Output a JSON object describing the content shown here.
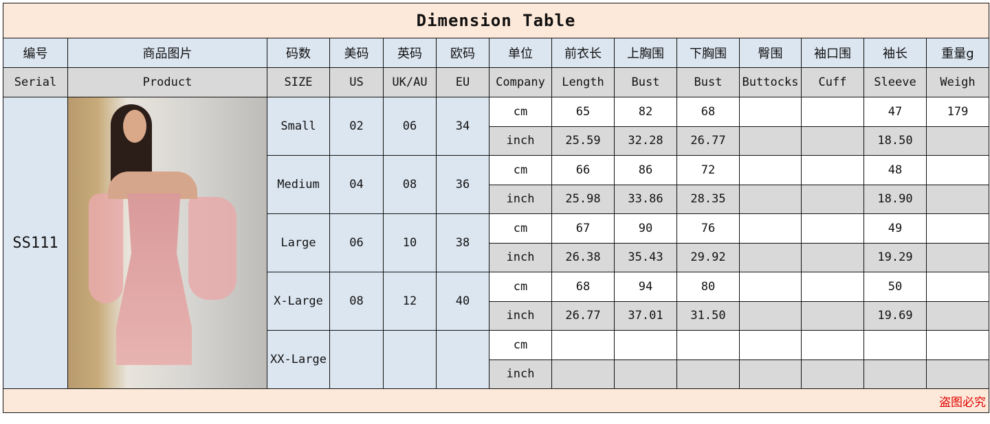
{
  "title": "Dimension Table",
  "header_cn": [
    "编号",
    "商品图片",
    "码数",
    "美码",
    "英码",
    "欧码",
    "单位",
    "前衣长",
    "上胸围",
    "下胸围",
    "臀围",
    "袖口围",
    "袖长",
    "重量g"
  ],
  "header_en": [
    "Serial",
    "Product",
    "SIZE",
    "US",
    "UK/AU",
    "EU",
    "Company",
    "Length",
    "Bust",
    "Bust",
    "Buttocks",
    "Cuff",
    "Sleeve",
    "Weigh"
  ],
  "serial": "SS111",
  "product_image": "woman in pink off-shoulder tulle mini dress",
  "units": {
    "cm": "cm",
    "inch": "inch"
  },
  "sizes": [
    {
      "size": "Small",
      "us": "02",
      "uk": "06",
      "eu": "34",
      "cm": [
        "65",
        "82",
        "68",
        "",
        "",
        "47",
        "179"
      ],
      "inch": [
        "25.59",
        "32.28",
        "26.77",
        "",
        "",
        "18.50",
        ""
      ]
    },
    {
      "size": "Medium",
      "us": "04",
      "uk": "08",
      "eu": "36",
      "cm": [
        "66",
        "86",
        "72",
        "",
        "",
        "48",
        ""
      ],
      "inch": [
        "25.98",
        "33.86",
        "28.35",
        "",
        "",
        "18.90",
        ""
      ]
    },
    {
      "size": "Large",
      "us": "06",
      "uk": "10",
      "eu": "38",
      "cm": [
        "67",
        "90",
        "76",
        "",
        "",
        "49",
        ""
      ],
      "inch": [
        "26.38",
        "35.43",
        "29.92",
        "",
        "",
        "19.29",
        ""
      ]
    },
    {
      "size": "X-Large",
      "us": "08",
      "uk": "12",
      "eu": "40",
      "cm": [
        "68",
        "94",
        "80",
        "",
        "",
        "50",
        ""
      ],
      "inch": [
        "26.77",
        "37.01",
        "31.50",
        "",
        "",
        "19.69",
        ""
      ]
    },
    {
      "size": "XX-Large",
      "us": "",
      "uk": "",
      "eu": "",
      "cm": [
        "",
        "",
        "",
        "",
        "",
        "",
        ""
      ],
      "inch": [
        "",
        "",
        "",
        "",
        "",
        "",
        ""
      ]
    }
  ],
  "footer": "盗图必究",
  "colors": {
    "title_bg": "#fde9d9",
    "header_blue": "#dce6f1",
    "gray": "#d9d9d9",
    "footer_text": "#e00000"
  }
}
